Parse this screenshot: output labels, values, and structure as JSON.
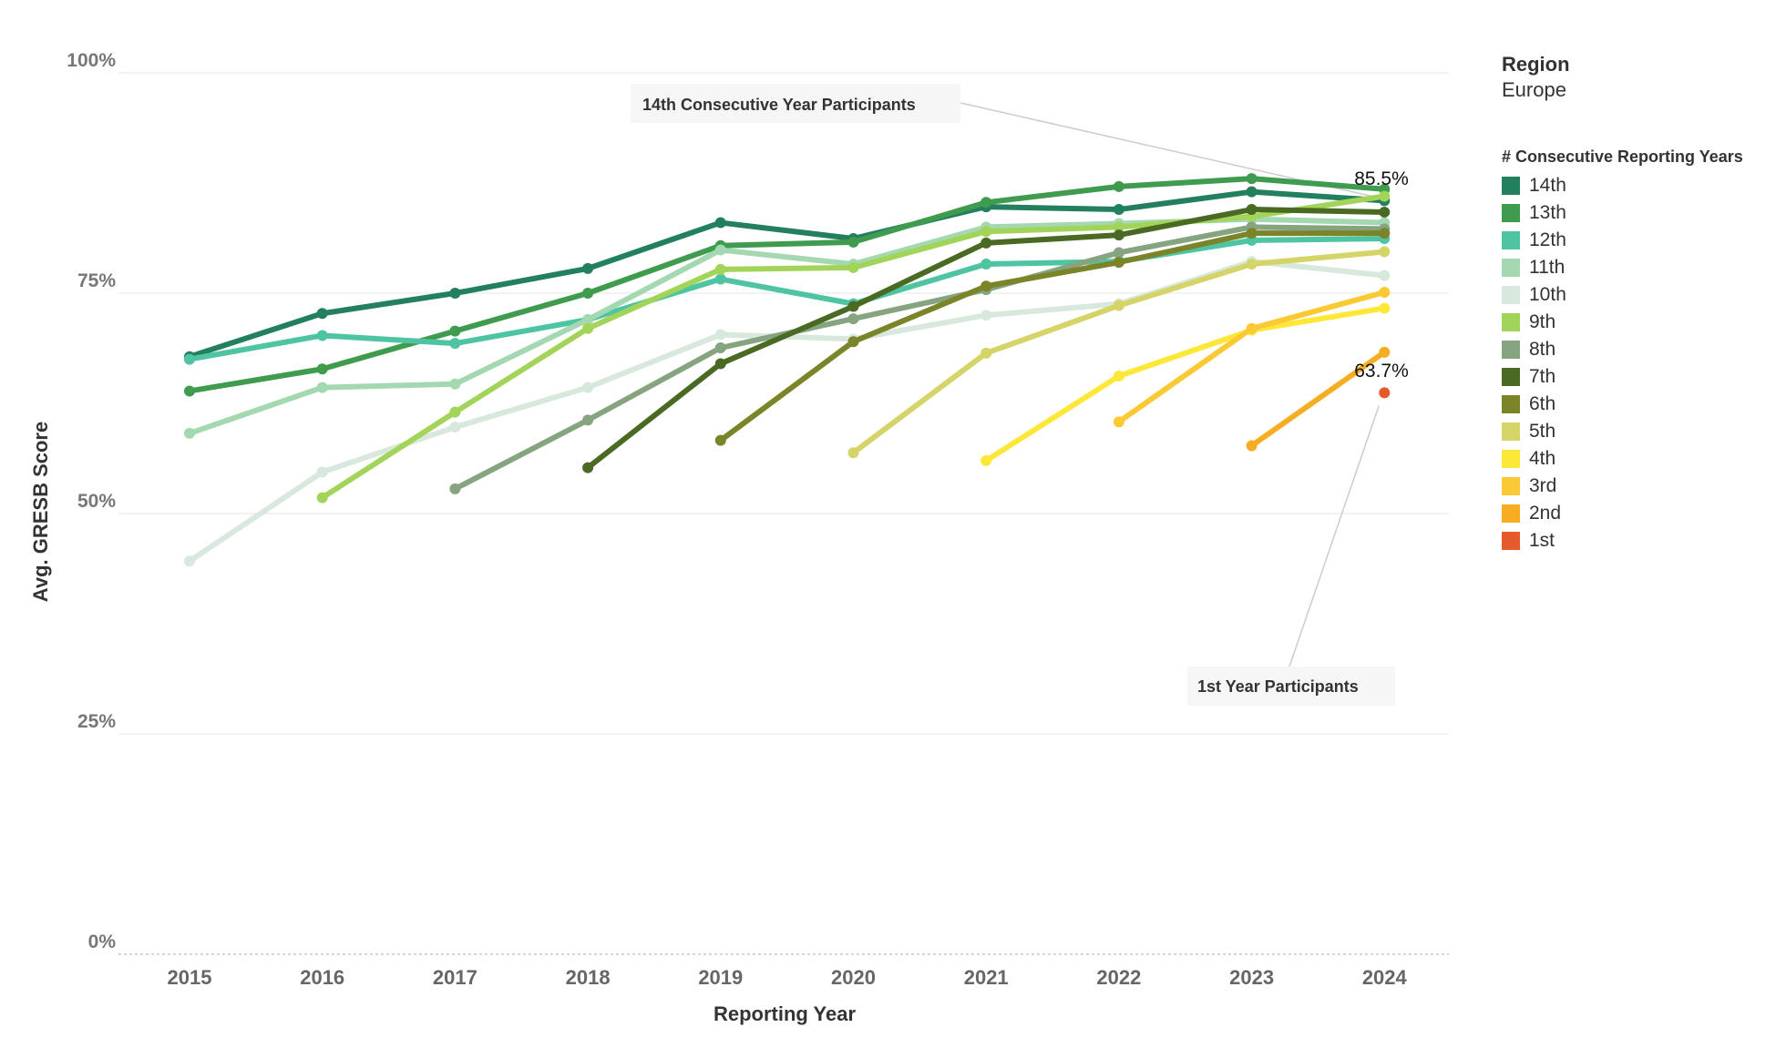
{
  "legend": {
    "region_title": "Region",
    "region_value": "Europe",
    "title": "# Consecutive Reporting Years"
  },
  "chart_data": {
    "type": "line",
    "title": "",
    "xlabel": "Reporting Year",
    "ylabel": "Avg. GRESB Score",
    "categories": [
      "2015",
      "2016",
      "2017",
      "2018",
      "2019",
      "2020",
      "2021",
      "2022",
      "2023",
      "2024"
    ],
    "ylim": [
      0,
      100
    ],
    "yticks": [
      {
        "value": 0,
        "label": "0%"
      },
      {
        "value": 25,
        "label": "25%"
      },
      {
        "value": 50,
        "label": "50%"
      },
      {
        "value": 75,
        "label": "75%"
      },
      {
        "value": 100,
        "label": "100%"
      }
    ],
    "grid": true,
    "legend_position": "right",
    "series": [
      {
        "name": "14th",
        "color": "#23805f",
        "values": [
          67.8,
          72.7,
          75.0,
          77.8,
          83.0,
          81.2,
          84.8,
          84.5,
          86.5,
          85.5
        ]
      },
      {
        "name": "13th",
        "color": "#3f9b4e",
        "values": [
          63.9,
          66.4,
          70.7,
          75.0,
          80.4,
          80.8,
          85.3,
          87.1,
          88.0,
          86.8
        ]
      },
      {
        "name": "12th",
        "color": "#4ec4a2",
        "values": [
          67.5,
          70.2,
          69.3,
          72.0,
          76.6,
          73.8,
          78.3,
          78.6,
          81.0,
          81.2
        ]
      },
      {
        "name": "11th",
        "color": "#a4d8b0",
        "values": [
          59.1,
          64.3,
          64.7,
          72.0,
          79.9,
          78.3,
          82.5,
          82.9,
          83.4,
          83.0
        ]
      },
      {
        "name": "10th",
        "color": "#d8e8dc",
        "values": [
          44.6,
          54.7,
          59.8,
          64.3,
          70.3,
          69.8,
          72.5,
          73.8,
          78.6,
          77.0
        ]
      },
      {
        "name": "9th",
        "color": "#a3d45a",
        "values": [
          null,
          51.8,
          61.5,
          71.0,
          77.7,
          77.9,
          82.0,
          82.5,
          83.7,
          86.0
        ]
      },
      {
        "name": "8th",
        "color": "#86a47f",
        "values": [
          null,
          null,
          52.8,
          60.6,
          68.8,
          72.1,
          75.4,
          79.6,
          82.5,
          82.3
        ]
      },
      {
        "name": "7th",
        "color": "#4a6a24",
        "values": [
          null,
          null,
          null,
          55.2,
          67.0,
          73.5,
          80.7,
          81.6,
          84.5,
          84.2
        ]
      },
      {
        "name": "6th",
        "color": "#7b8428",
        "values": [
          null,
          null,
          null,
          null,
          58.3,
          69.5,
          75.8,
          78.5,
          81.8,
          81.8
        ]
      },
      {
        "name": "5th",
        "color": "#d4d468",
        "values": [
          null,
          null,
          null,
          null,
          null,
          56.9,
          68.2,
          73.6,
          78.3,
          79.7
        ]
      },
      {
        "name": "4th",
        "color": "#fde83a",
        "values": [
          null,
          null,
          null,
          null,
          null,
          null,
          56.0,
          65.6,
          70.8,
          73.3
        ]
      },
      {
        "name": "3rd",
        "color": "#fbc934",
        "values": [
          null,
          null,
          null,
          null,
          null,
          null,
          null,
          60.4,
          71.0,
          75.1
        ]
      },
      {
        "name": "2nd",
        "color": "#f6ad22",
        "values": [
          null,
          null,
          null,
          null,
          null,
          null,
          null,
          null,
          57.7,
          68.3
        ]
      },
      {
        "name": "1st",
        "color": "#e65a2a",
        "values": [
          null,
          null,
          null,
          null,
          null,
          null,
          null,
          null,
          null,
          63.7
        ]
      }
    ],
    "data_labels": [
      {
        "series": "14th",
        "x": "2024",
        "text": "85.5%"
      },
      {
        "series": "1st",
        "x": "2024",
        "text": "63.7%"
      }
    ],
    "annotations": [
      {
        "text": "14th Consecutive Year Participants",
        "series": "14th",
        "x": "2024"
      },
      {
        "text": "1st Year Participants",
        "series": "1st",
        "x": "2024"
      }
    ]
  }
}
